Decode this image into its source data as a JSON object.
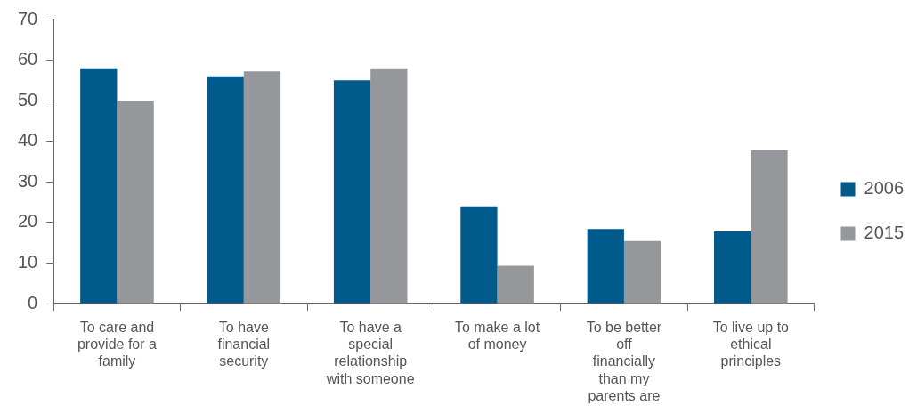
{
  "chart_data": {
    "type": "bar",
    "categories": [
      "To care and provide for a family",
      "To have financial security",
      "To have a special relationship with someone",
      "To make a lot of money",
      "To be better off financially than my parents are",
      "To live up to ethical principles"
    ],
    "series": [
      {
        "name": "2006",
        "color": "#005b8c",
        "values": [
          58,
          56,
          55,
          24,
          18.4,
          17.8
        ]
      },
      {
        "name": "2015",
        "color": "#96979b",
        "values": [
          50,
          57.2,
          58,
          9.3,
          15.4,
          37.8
        ]
      }
    ],
    "ylim": [
      0,
      70
    ],
    "yticks": [
      0,
      10,
      20,
      30,
      40,
      50,
      60,
      70
    ],
    "grid": false,
    "legend": "right"
  }
}
